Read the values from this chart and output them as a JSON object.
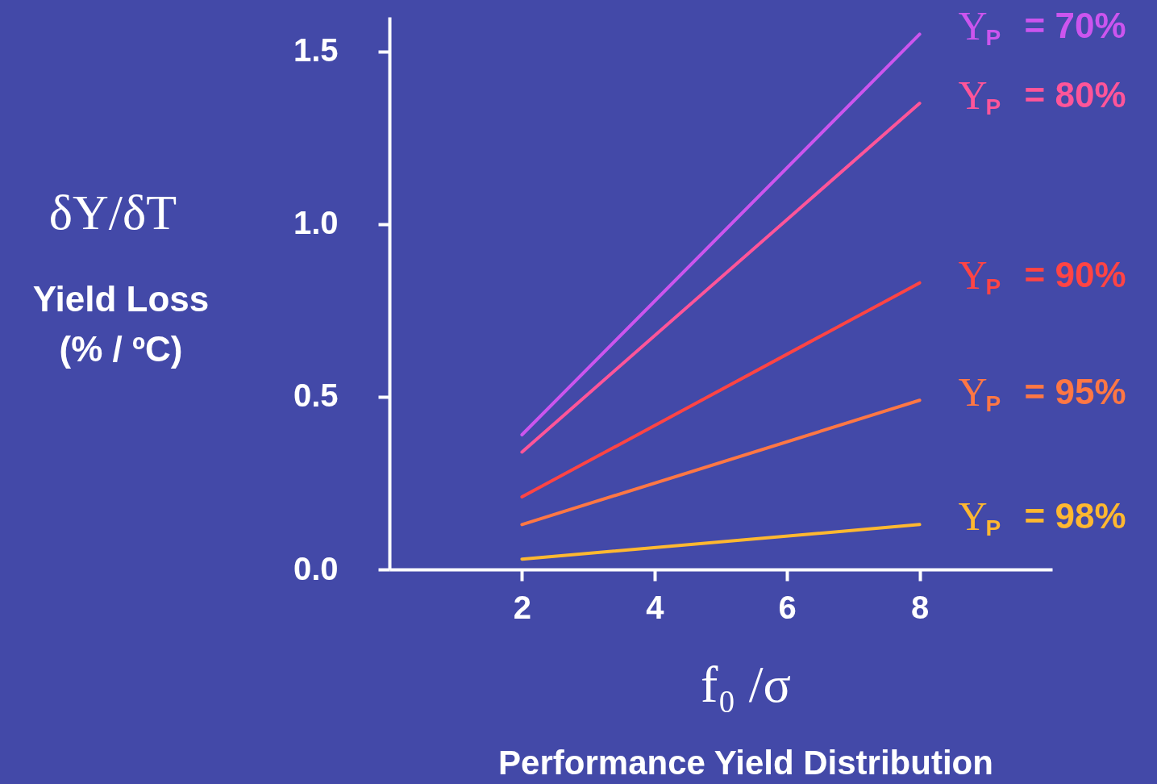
{
  "chart_data": {
    "type": "line",
    "ylabel": "δY/δT\nYield Loss\n(% / ºC)",
    "xlabel": "f₀ /σ",
    "annotations": [
      "Performance Yield Distribution"
    ],
    "x": [
      2,
      8
    ],
    "series": [
      {
        "name": "Y$_{P}$ = 70%",
        "color": "#cc55ee",
        "values": [
          0.39,
          1.55
        ]
      },
      {
        "name": "Y$_{P}$ = 80%",
        "color": "#ff5599",
        "values": [
          0.34,
          1.35
        ]
      },
      {
        "name": "Y$_{P}$ = 90%",
        "color": "#ff4444",
        "values": [
          0.21,
          0.83
        ]
      },
      {
        "name": "Y$_{P}$ = 95%",
        "color": "#ff7744",
        "values": [
          0.13,
          0.49
        ]
      },
      {
        "name": "Y$_{P}$ = 98%",
        "color": "#ffb830",
        "values": [
          0.03,
          0.13
        ]
      }
    ],
    "xlim": [
      0,
      10
    ],
    "xticks": [
      2,
      4,
      6,
      8
    ],
    "ylim": [
      0,
      1.6
    ],
    "yticks": [
      {
        "value": 0,
        "label": "0.0"
      },
      {
        "value": 0.5,
        "label": "0.5"
      },
      {
        "value": 1,
        "label": "1.0"
      },
      {
        "value": 1.5,
        "label": "1.5"
      }
    ],
    "grid": false
  }
}
